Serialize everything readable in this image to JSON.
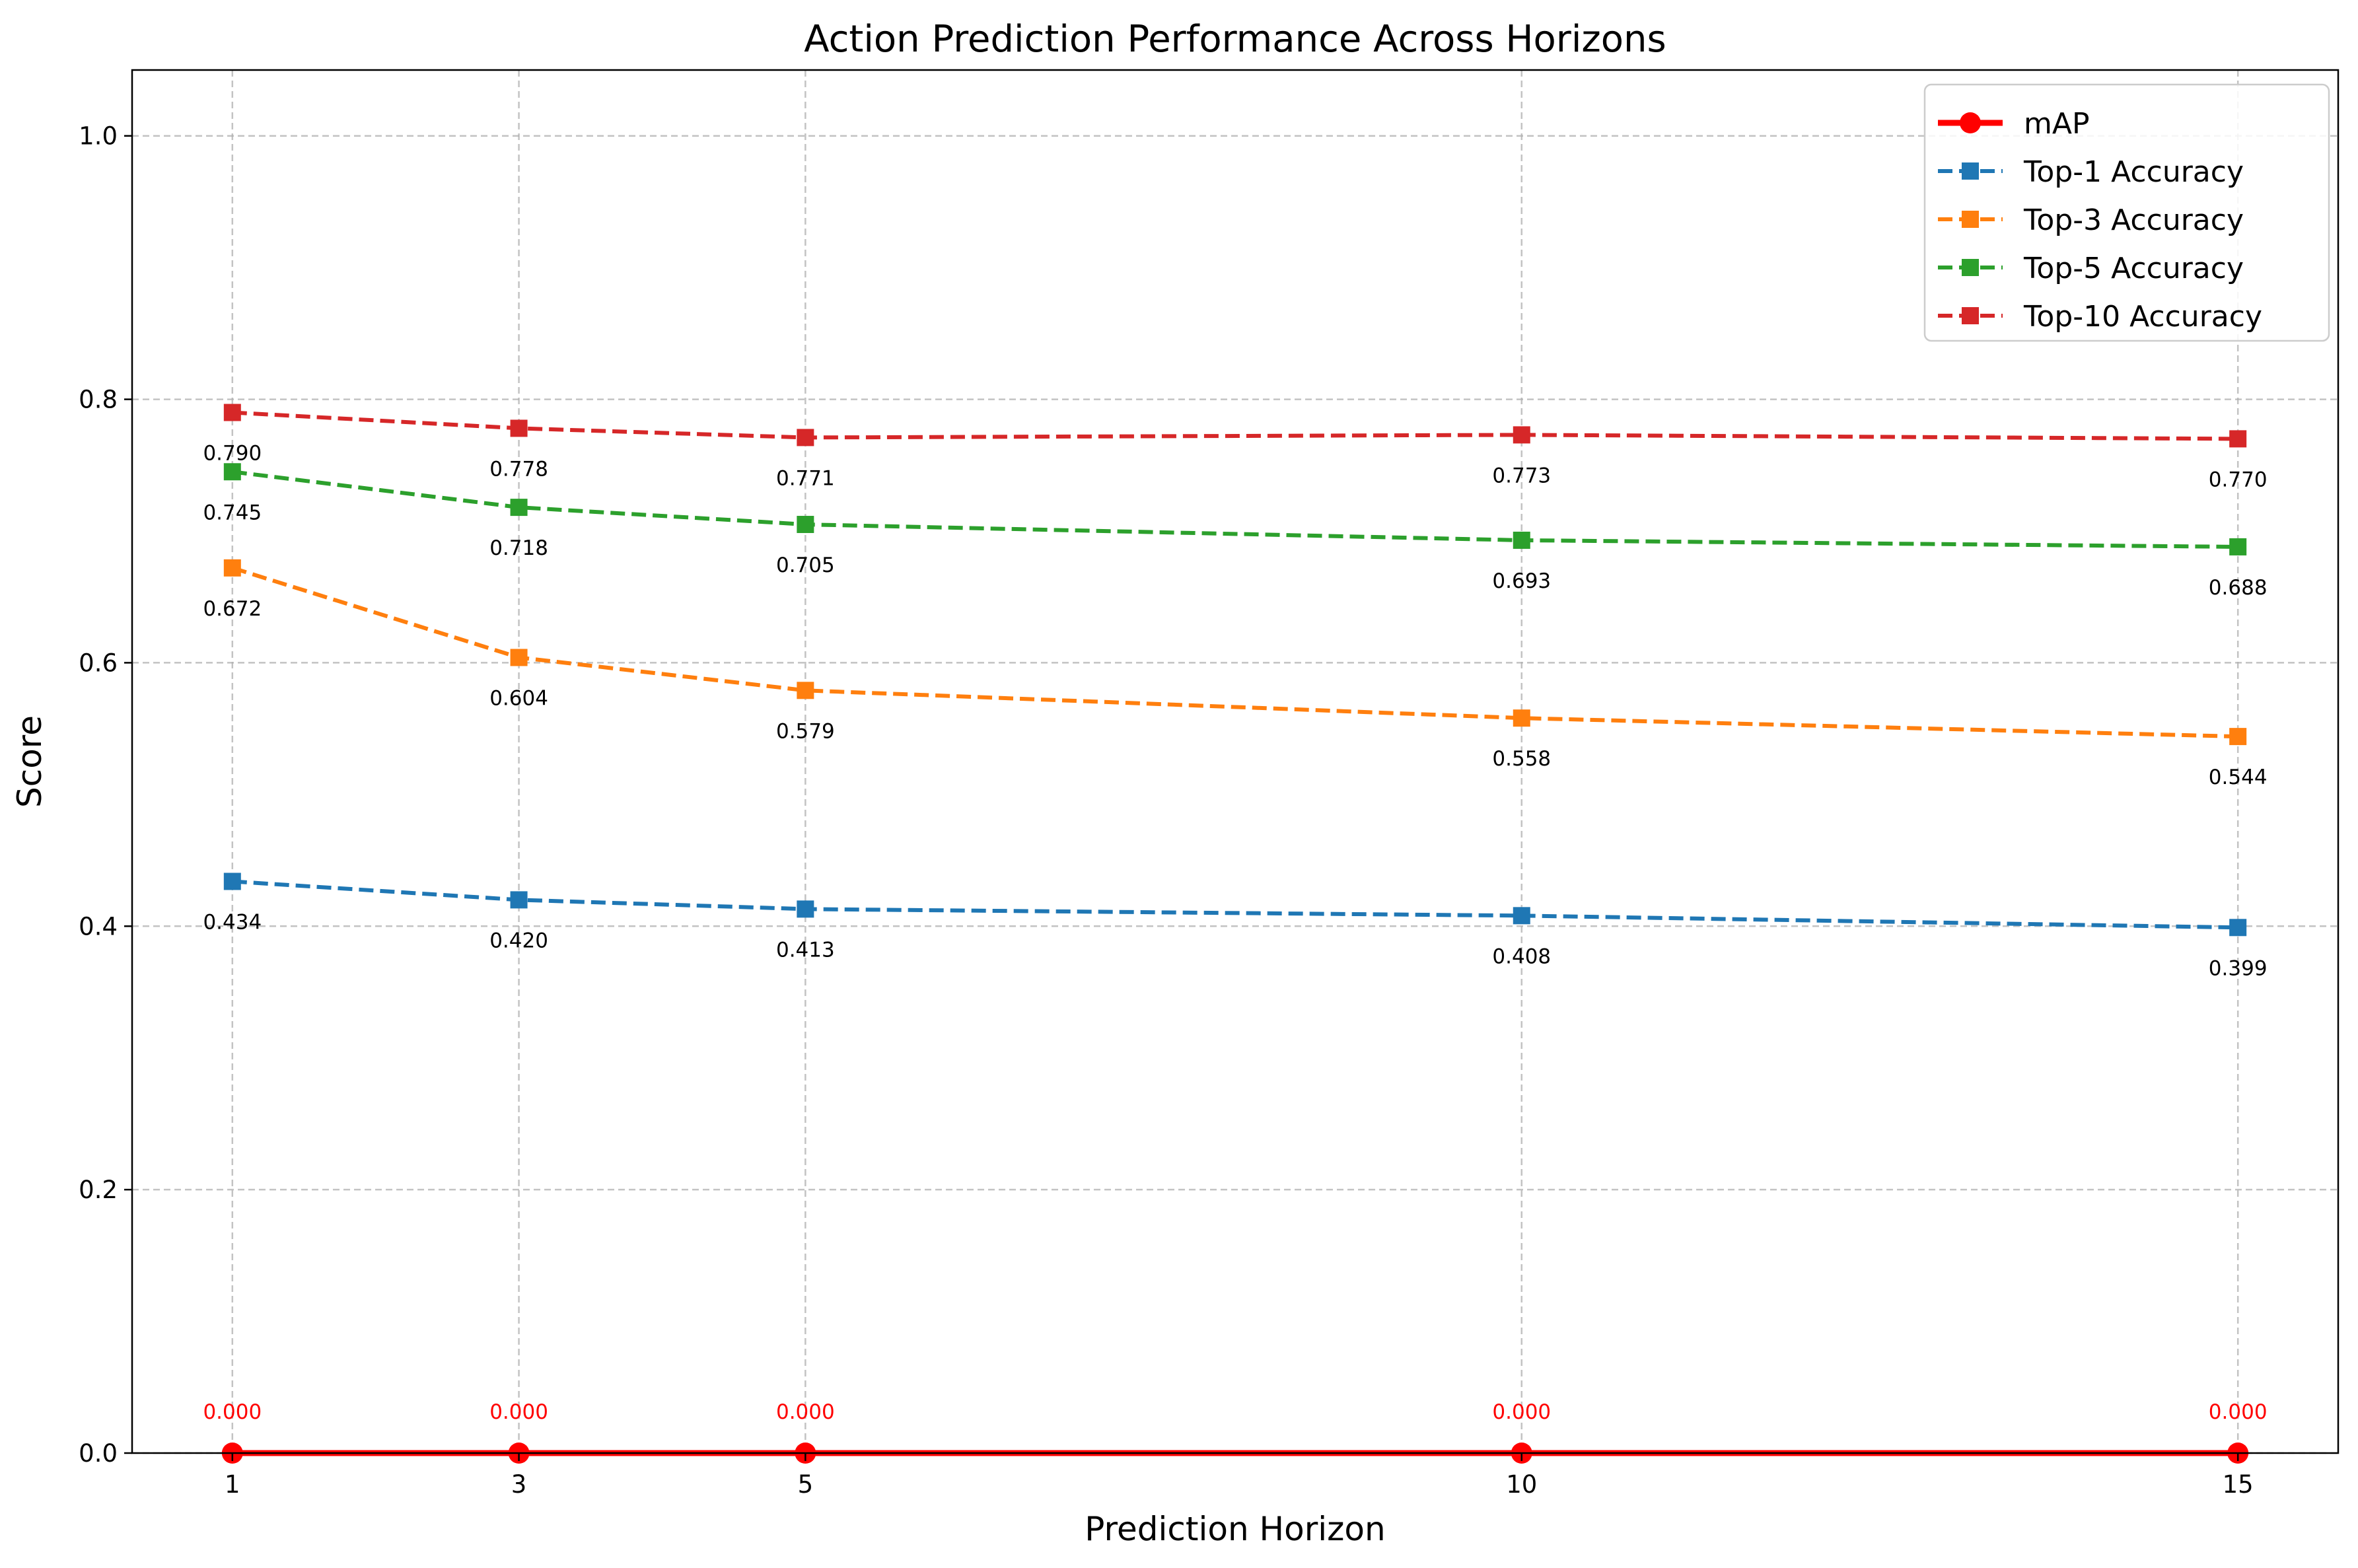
{
  "chart_data": {
    "type": "line",
    "title": "Action Prediction Performance Across Horizons",
    "xlabel": "Prediction Horizon",
    "ylabel": "Score",
    "x": [
      1,
      3,
      5,
      10,
      15
    ],
    "x_tick_labels": [
      "1",
      "3",
      "5",
      "10",
      "15"
    ],
    "xlim": [
      0.3,
      15.7
    ],
    "ylim": [
      0,
      1.05
    ],
    "y_ticks": [
      0.0,
      0.2,
      0.4,
      0.6,
      0.8,
      1.0
    ],
    "y_tick_labels": [
      "0.0",
      "0.2",
      "0.4",
      "0.6",
      "0.8",
      "1.0"
    ],
    "grid": true,
    "legend_position": "top-right",
    "series": [
      {
        "name": "mAP",
        "values": [
          0.0,
          0.0,
          0.0,
          0.0,
          0.0
        ],
        "value_labels": [
          "0.000",
          "0.000",
          "0.000",
          "0.000",
          "0.000"
        ],
        "color": "#ff0000",
        "line_style": "solid",
        "marker": "circle",
        "label_color": "#ff0000",
        "label_position": "above"
      },
      {
        "name": "Top-1 Accuracy",
        "values": [
          0.434,
          0.42,
          0.413,
          0.408,
          0.399
        ],
        "value_labels": [
          "0.434",
          "0.420",
          "0.413",
          "0.408",
          "0.399"
        ],
        "color": "#1f77b4",
        "line_style": "dashed",
        "marker": "square",
        "label_color": "#000000",
        "label_position": "below"
      },
      {
        "name": "Top-3 Accuracy",
        "values": [
          0.672,
          0.604,
          0.579,
          0.558,
          0.544
        ],
        "value_labels": [
          "0.672",
          "0.604",
          "0.579",
          "0.558",
          "0.544"
        ],
        "color": "#ff7f0e",
        "line_style": "dashed",
        "marker": "square",
        "label_color": "#000000",
        "label_position": "below"
      },
      {
        "name": "Top-5 Accuracy",
        "values": [
          0.745,
          0.718,
          0.705,
          0.693,
          0.688
        ],
        "value_labels": [
          "0.745",
          "0.718",
          "0.705",
          "0.693",
          "0.688"
        ],
        "color": "#2ca02c",
        "line_style": "dashed",
        "marker": "square",
        "label_color": "#000000",
        "label_position": "below"
      },
      {
        "name": "Top-10 Accuracy",
        "values": [
          0.79,
          0.778,
          0.771,
          0.773,
          0.77
        ],
        "value_labels": [
          "0.790",
          "0.778",
          "0.771",
          "0.773",
          "0.770"
        ],
        "color": "#d62728",
        "line_style": "dashed",
        "marker": "square",
        "label_color": "#000000",
        "label_position": "below"
      }
    ]
  }
}
